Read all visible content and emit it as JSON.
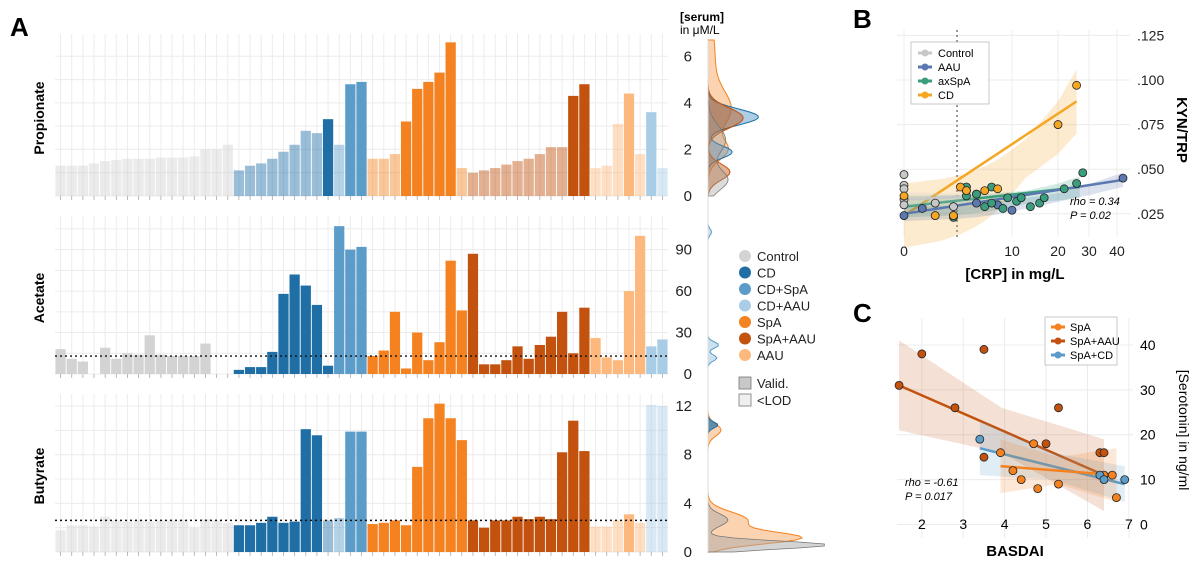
{
  "colors": {
    "Control": "#d3d3d3",
    "CD": "#1f6fa6",
    "CD+SpA": "#5b9cc9",
    "CD+AAU": "#a9cde6",
    "SpA": "#f58220",
    "SpA+AAU": "#c2520e",
    "AAU": "#fdb97d",
    "pale_alpha": 0.45
  },
  "panel_labels": [
    "A",
    "B",
    "C"
  ],
  "panel_a": {
    "serum_header": "[serum]",
    "serum_unit": "in μM/L",
    "legend": {
      "groups": [
        "Control",
        "CD",
        "CD+SpA",
        "CD+AAU",
        "SpA",
        "SpA+AAU",
        "AAU"
      ],
      "status": [
        "Valid.",
        "<LOD"
      ]
    },
    "group_order": [
      "Control",
      "Control",
      "Control",
      "Control",
      "Control",
      "Control",
      "Control",
      "Control",
      "Control",
      "Control",
      "Control",
      "Control",
      "Control",
      "Control",
      "Control",
      "Control",
      "CD",
      "CD",
      "CD",
      "CD",
      "CD",
      "CD",
      "CD",
      "CD",
      "CD",
      "CD+SpA",
      "CD+SpA",
      "CD+SpA",
      "SpA",
      "SpA",
      "SpA",
      "SpA",
      "SpA",
      "SpA",
      "SpA",
      "SpA",
      "SpA",
      "SpA+AAU",
      "SpA+AAU",
      "SpA+AAU",
      "SpA+AAU",
      "SpA+AAU",
      "SpA+AAU",
      "SpA+AAU",
      "SpA+AAU",
      "SpA+AAU",
      "SpA+AAU",
      "SpA+AAU",
      "AAU",
      "AAU",
      "AAU",
      "AAU",
      "AAU",
      "CD+AAU",
      "CD+AAU"
    ]
  },
  "chart_data": [
    {
      "type": "bar",
      "title": "Propionate",
      "ylabel": "Propionate",
      "ylim": [
        0,
        6.7
      ],
      "yticks": [
        0,
        2,
        4,
        6
      ],
      "lod": null,
      "values": [
        1.3,
        1.3,
        1.3,
        1.4,
        1.5,
        1.55,
        1.6,
        1.6,
        1.6,
        1.65,
        1.65,
        1.65,
        1.7,
        2.0,
        2.0,
        2.2,
        1.1,
        1.3,
        1.4,
        1.6,
        1.9,
        2.2,
        2.8,
        2.7,
        3.3,
        2.2,
        4.8,
        4.9,
        1.6,
        1.6,
        1.8,
        3.2,
        4.6,
        4.9,
        5.3,
        6.6,
        1.2,
        1.0,
        1.1,
        1.2,
        1.35,
        1.5,
        1.6,
        1.8,
        2.1,
        2.1,
        4.3,
        4.8,
        1.2,
        1.3,
        3.1,
        4.4,
        1.8,
        3.6,
        1.2
      ],
      "valid": [
        0,
        0,
        0,
        0,
        0,
        0,
        0,
        0,
        0,
        0,
        0,
        0,
        0,
        0,
        0,
        0,
        0,
        0,
        0,
        0,
        0,
        0,
        0,
        0,
        1,
        0,
        1,
        1,
        0,
        0,
        0,
        1,
        1,
        1,
        1,
        1,
        0,
        0,
        0,
        0,
        0,
        0,
        0,
        0,
        0,
        0,
        1,
        1,
        0,
        0,
        0,
        1,
        0,
        1,
        0
      ]
    },
    {
      "type": "bar",
      "title": "Acetate",
      "ylabel": "Acetate",
      "ylim": [
        0,
        110
      ],
      "yticks": [
        0,
        30,
        60,
        90
      ],
      "lod": 13,
      "values": [
        18,
        11,
        9,
        0,
        19,
        11,
        15,
        14,
        28,
        14,
        13,
        13,
        13,
        22,
        0,
        0,
        3,
        5,
        5,
        16,
        58,
        72,
        64,
        50,
        6,
        107,
        90,
        92,
        13,
        17,
        45,
        4,
        30,
        10,
        23,
        82,
        46,
        87,
        7,
        7,
        10,
        20,
        11,
        21,
        27,
        45,
        15,
        48,
        26,
        12,
        10,
        60,
        100,
        20,
        25
      ],
      "valid": [
        1,
        1,
        1,
        0,
        1,
        1,
        1,
        1,
        1,
        1,
        1,
        1,
        1,
        1,
        0,
        0,
        1,
        1,
        1,
        1,
        1,
        1,
        1,
        1,
        1,
        1,
        1,
        1,
        1,
        1,
        1,
        1,
        1,
        1,
        1,
        1,
        1,
        1,
        1,
        1,
        1,
        1,
        1,
        1,
        1,
        1,
        1,
        1,
        1,
        1,
        1,
        1,
        1,
        1,
        1
      ]
    },
    {
      "type": "bar",
      "title": "Butyrate",
      "ylabel": "Butyrate",
      "ylim": [
        0,
        12.5
      ],
      "yticks": [
        0,
        4,
        8,
        12
      ],
      "lod": 2.6,
      "values": [
        1.8,
        2.2,
        2.2,
        2.1,
        2.9,
        2.6,
        2.5,
        2.6,
        2.5,
        2.6,
        2.6,
        2.6,
        2.0,
        2.7,
        2.6,
        2.4,
        2.2,
        2.2,
        2.4,
        2.9,
        2.4,
        2.5,
        10.1,
        9.6,
        2.6,
        2.8,
        9.9,
        9.9,
        2.3,
        2.4,
        2.6,
        2.2,
        7.0,
        11.0,
        12.2,
        11.0,
        9.2,
        2.6,
        2.0,
        2.6,
        2.6,
        2.9,
        2.7,
        2.9,
        2.7,
        8.2,
        10.8,
        8.3,
        2.1,
        2.1,
        2.6,
        3.1,
        2.4,
        12.1,
        12.0
      ],
      "valid": [
        0,
        0,
        0,
        0,
        0,
        0,
        0,
        0,
        0,
        0,
        0,
        0,
        0,
        0,
        0,
        0,
        1,
        1,
        1,
        1,
        1,
        1,
        1,
        1,
        0,
        0,
        1,
        1,
        1,
        1,
        1,
        1,
        1,
        1,
        1,
        1,
        1,
        1,
        1,
        1,
        1,
        1,
        1,
        1,
        1,
        1,
        1,
        1,
        0,
        0,
        0,
        1,
        0,
        0,
        0
      ]
    },
    {
      "type": "scatter",
      "panel": "B",
      "xlabel": "[CRP] in mg/L",
      "ylabel": "KYN/TRP",
      "xticks": [
        0,
        10,
        20,
        30,
        40
      ],
      "yticks": [
        0.025,
        0.05,
        0.075,
        0.1,
        0.125
      ],
      "ytick_labels": [
        ".025",
        ".050",
        ".075",
        ".100",
        ".125"
      ],
      "annotation_rho": "rho = 0.34",
      "annotation_p": "P = 0.02",
      "legend": [
        "Control",
        "AAU",
        "axSpA",
        "CD"
      ],
      "series": [
        {
          "name": "Control",
          "color": "#c8c8c8",
          "points": [
            [
              0,
              0.047
            ],
            [
              0,
              0.041
            ],
            [
              0,
              0.039
            ],
            [
              0,
              0.033
            ],
            [
              0,
              0.03
            ],
            [
              1,
              0.031
            ],
            [
              2,
              0.029
            ],
            [
              3,
              0.038
            ],
            [
              4,
              0.036
            ]
          ]
        },
        {
          "name": "AAU",
          "color": "#5b79b0",
          "points": [
            [
              0,
              0.024
            ],
            [
              0.5,
              0.028
            ],
            [
              2,
              0.024
            ],
            [
              4,
              0.031
            ],
            [
              7,
              0.03
            ],
            [
              10,
              0.027
            ],
            [
              42,
              0.045
            ]
          ]
        },
        {
          "name": "axSpA",
          "color": "#3a9d7e",
          "points": [
            [
              2,
              0.023
            ],
            [
              3,
              0.035
            ],
            [
              4,
              0.036
            ],
            [
              5,
              0.029
            ],
            [
              6,
              0.031
            ],
            [
              8,
              0.028
            ],
            [
              9,
              0.034
            ],
            [
              11,
              0.032
            ],
            [
              12,
              0.034
            ],
            [
              14,
              0.029
            ],
            [
              16,
              0.031
            ],
            [
              17,
              0.034
            ],
            [
              22,
              0.039
            ],
            [
              26,
              0.042
            ],
            [
              28,
              0.048
            ],
            [
              3,
              0.04
            ],
            [
              6,
              0.04
            ]
          ]
        },
        {
          "name": "CD",
          "color": "#f5a623",
          "points": [
            [
              0,
              0.035
            ],
            [
              1,
              0.024
            ],
            [
              2,
              0.024
            ],
            [
              2.5,
              0.04
            ],
            [
              3,
              0.038
            ],
            [
              5,
              0.038
            ],
            [
              7,
              0.039
            ],
            [
              20,
              0.075
            ],
            [
              26,
              0.097
            ]
          ]
        }
      ]
    },
    {
      "type": "scatter",
      "panel": "C",
      "xlabel": "BASDAI",
      "ylabel": "[Serotonin] in ng/ml",
      "xlim": [
        1.4,
        7.1
      ],
      "ylim": [
        -3,
        46
      ],
      "xticks": [
        2,
        3,
        4,
        5,
        6,
        7
      ],
      "yticks": [
        0,
        10,
        20,
        30,
        40
      ],
      "annotation_rho": "rho = -0.61",
      "annotation_p": "P = 0.017",
      "legend": [
        "SpA",
        "SpA+AAU",
        "SpA+CD"
      ],
      "series": [
        {
          "name": "SpA",
          "color": "#f58220",
          "points": [
            [
              3.9,
              16
            ],
            [
              4.2,
              12
            ],
            [
              4.4,
              10
            ],
            [
              4.8,
              8
            ],
            [
              4.7,
              18
            ],
            [
              5.3,
              9
            ],
            [
              6.4,
              11
            ],
            [
              6.6,
              11
            ],
            [
              6.7,
              6
            ]
          ]
        },
        {
          "name": "SpA+AAU",
          "color": "#c2520e",
          "points": [
            [
              1.45,
              31
            ],
            [
              2.0,
              38
            ],
            [
              2.8,
              26
            ],
            [
              3.5,
              39
            ],
            [
              5.0,
              18
            ],
            [
              5.3,
              26
            ],
            [
              6.3,
              16
            ],
            [
              6.4,
              16
            ],
            [
              3.5,
              15
            ]
          ]
        },
        {
          "name": "SpA+CD",
          "color": "#5b9cc9",
          "points": [
            [
              3.4,
              19
            ],
            [
              6.3,
              11
            ],
            [
              6.4,
              10
            ],
            [
              6.9,
              10
            ]
          ]
        }
      ]
    }
  ]
}
